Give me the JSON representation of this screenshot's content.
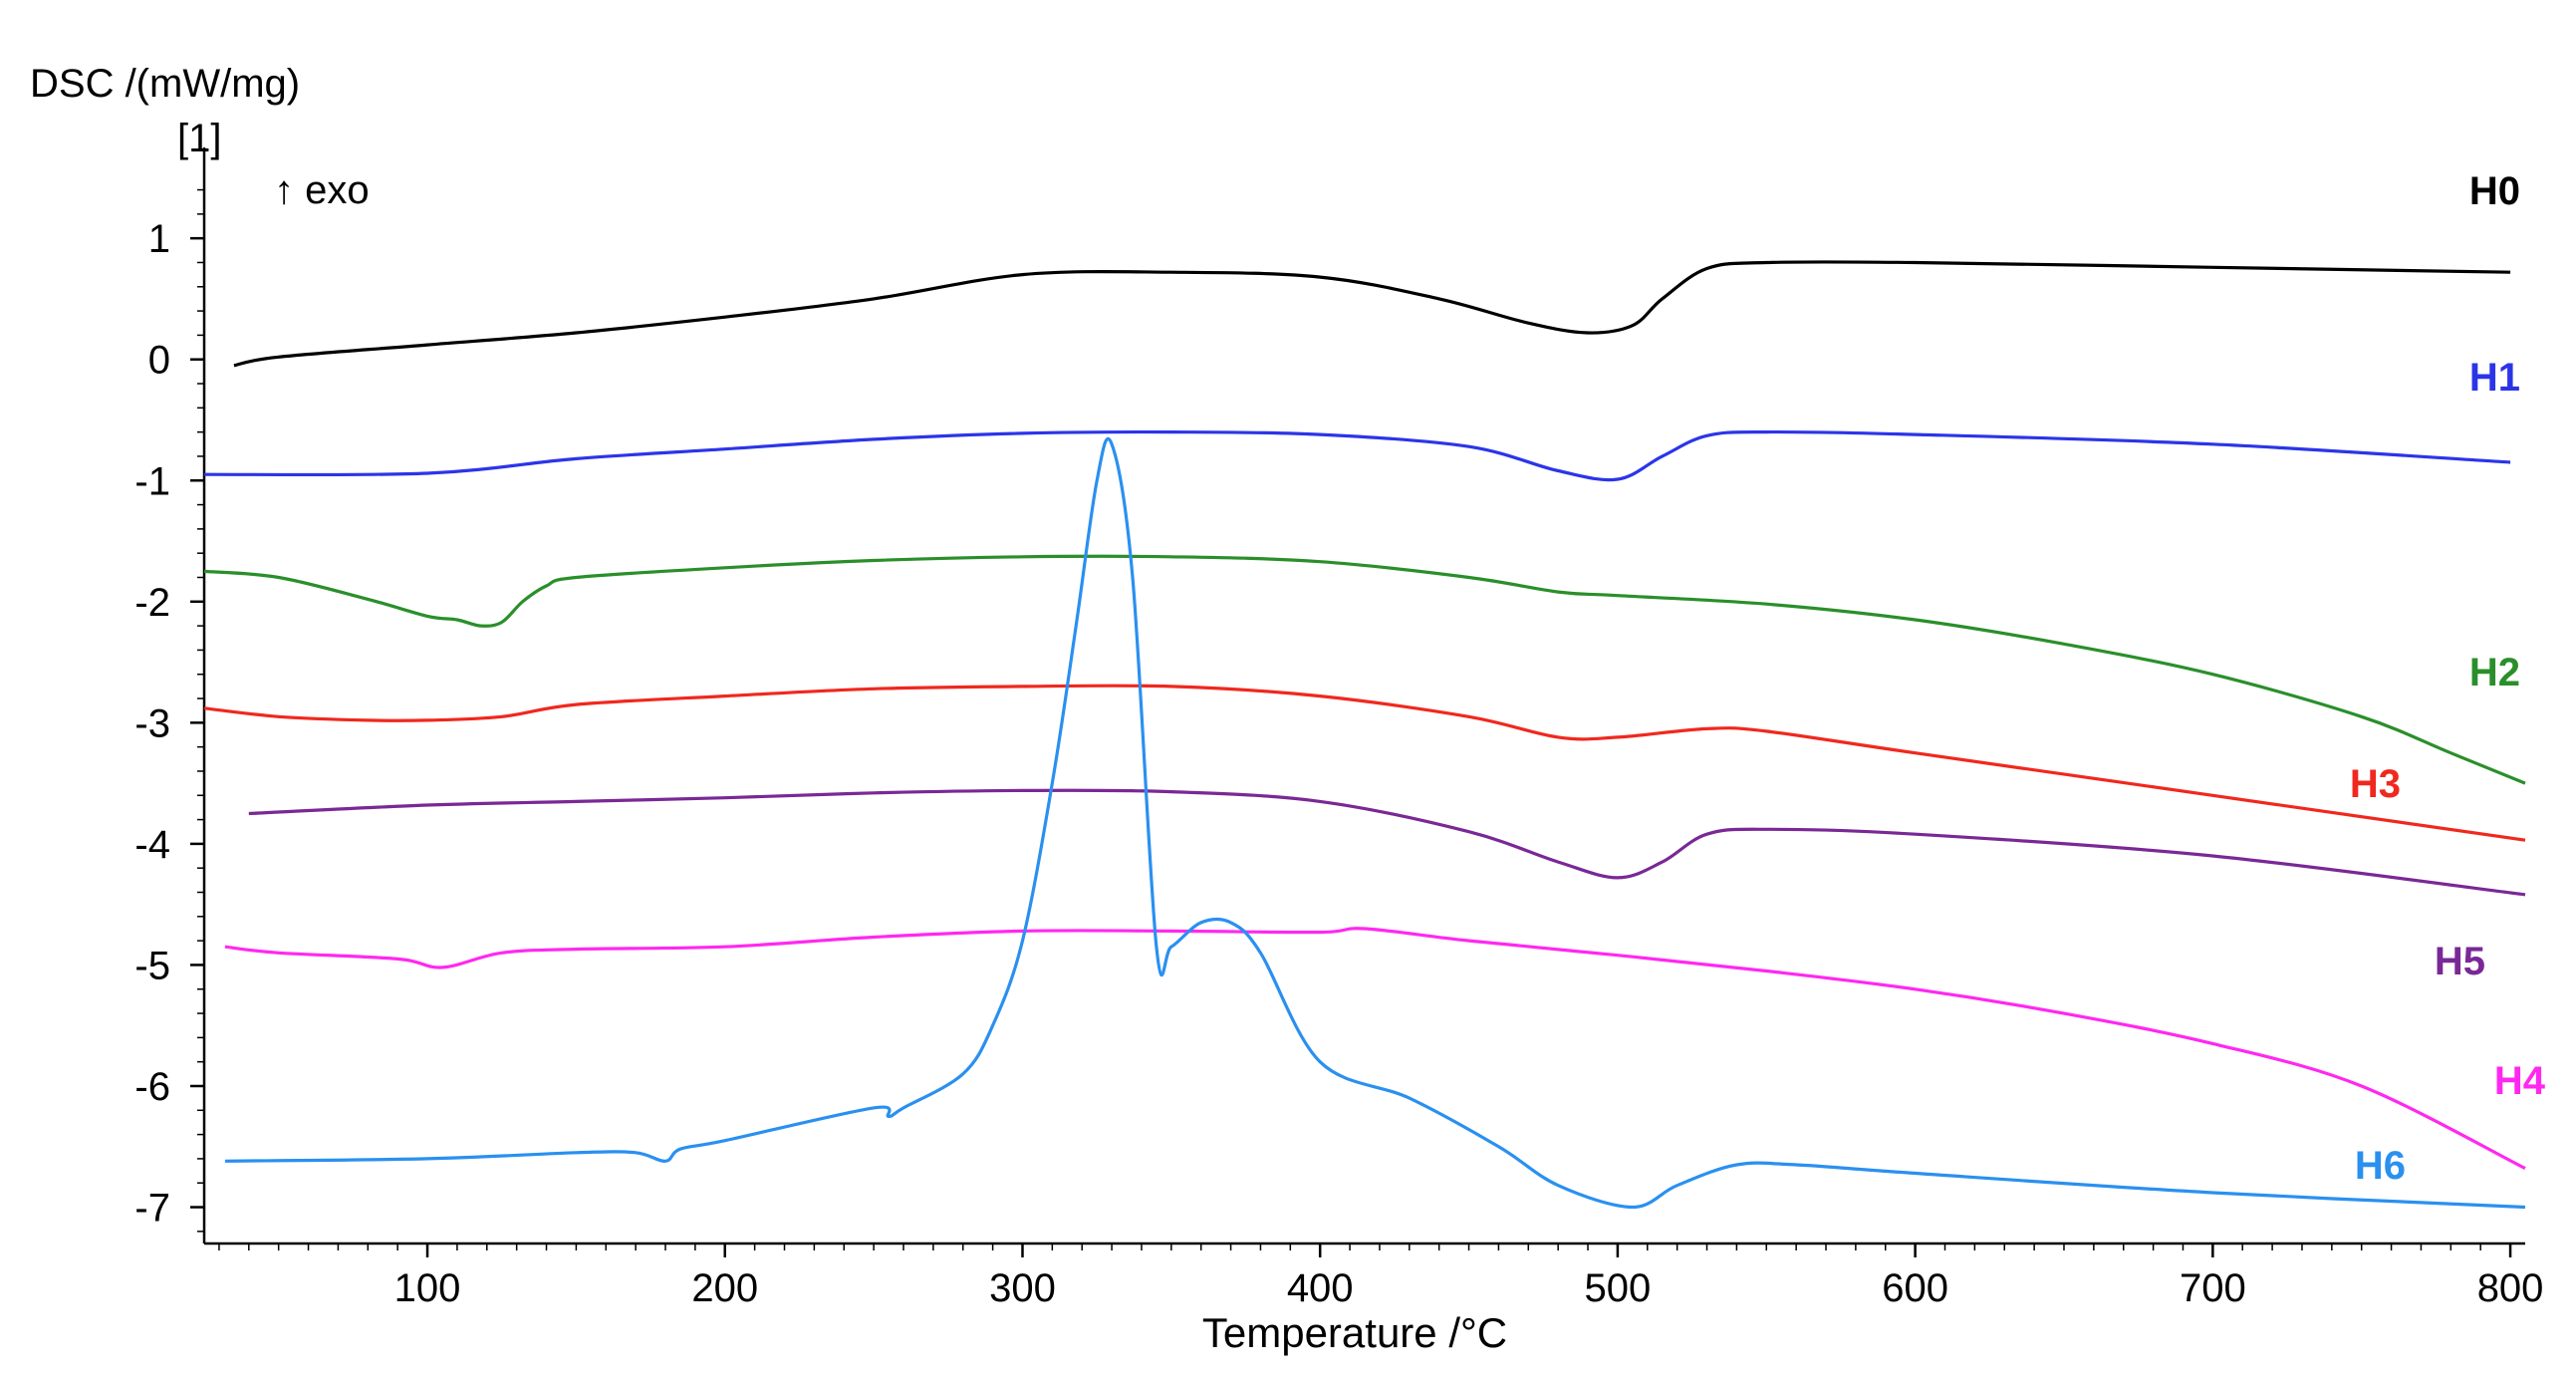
{
  "chart_data": {
    "type": "line",
    "ylabel": "DSC /(mW/mg)",
    "yunit": "[1]",
    "xlabel": "Temperature /°C",
    "annotation": "↑ exo",
    "xlim": [
      25,
      805
    ],
    "ylim": [
      -7.3,
      1.75
    ],
    "xticks": [
      100,
      200,
      300,
      400,
      500,
      600,
      700,
      800
    ],
    "yticks": [
      1,
      0,
      -1,
      -2,
      -3,
      -4,
      -5,
      -6,
      -7
    ],
    "grid": false,
    "legend": "right",
    "series": [
      {
        "name": "H0",
        "color": "#000000",
        "x": [
          35,
          50,
          100,
          150,
          200,
          250,
          300,
          350,
          400,
          440,
          470,
          490,
          505,
          515,
          530,
          550,
          600,
          700,
          800
        ],
        "y": [
          -0.05,
          0.02,
          0.12,
          0.22,
          0.35,
          0.5,
          0.7,
          0.72,
          0.68,
          0.5,
          0.3,
          0.22,
          0.28,
          0.5,
          0.75,
          0.8,
          0.8,
          0.76,
          0.72
        ]
      },
      {
        "name": "H1",
        "color": "#2b35e8",
        "x": [
          25,
          100,
          150,
          200,
          250,
          300,
          350,
          400,
          450,
          480,
          500,
          515,
          530,
          550,
          600,
          700,
          800
        ],
        "y": [
          -0.95,
          -0.94,
          -0.82,
          -0.74,
          -0.66,
          -0.61,
          -0.6,
          -0.62,
          -0.72,
          -0.92,
          -0.99,
          -0.8,
          -0.63,
          -0.6,
          -0.62,
          -0.7,
          -0.85
        ]
      },
      {
        "name": "H2",
        "color": "#2a8f2a",
        "x": [
          25,
          50,
          80,
          100,
          110,
          118,
          125,
          132,
          140,
          150,
          200,
          250,
          300,
          350,
          400,
          450,
          480,
          500,
          550,
          600,
          650,
          700,
          750,
          780,
          805
        ],
        "y": [
          -1.75,
          -1.8,
          -1.98,
          -2.12,
          -2.15,
          -2.2,
          -2.17,
          -2.0,
          -1.87,
          -1.8,
          -1.72,
          -1.66,
          -1.63,
          -1.63,
          -1.67,
          -1.8,
          -1.92,
          -1.95,
          -2.02,
          -2.15,
          -2.35,
          -2.6,
          -2.95,
          -3.25,
          -3.5
        ]
      },
      {
        "name": "H3",
        "color": "#f0281e",
        "x": [
          25,
          50,
          80,
          100,
          125,
          150,
          200,
          250,
          300,
          350,
          400,
          450,
          480,
          500,
          530,
          550,
          600,
          700,
          805
        ],
        "y": [
          -2.88,
          -2.95,
          -2.98,
          -2.98,
          -2.95,
          -2.85,
          -2.78,
          -2.72,
          -2.7,
          -2.7,
          -2.78,
          -2.95,
          -3.12,
          -3.12,
          -3.05,
          -3.07,
          -3.25,
          -3.6,
          -3.97
        ]
      },
      {
        "name": "H5",
        "color": "#7a2896",
        "x": [
          40,
          100,
          150,
          200,
          250,
          300,
          350,
          400,
          450,
          480,
          500,
          515,
          530,
          550,
          600,
          700,
          805
        ],
        "y": [
          -3.75,
          -3.68,
          -3.65,
          -3.62,
          -3.58,
          -3.56,
          -3.57,
          -3.65,
          -3.9,
          -4.15,
          -4.28,
          -4.15,
          -3.92,
          -3.88,
          -3.92,
          -4.1,
          -4.42
        ]
      },
      {
        "name": "H4",
        "color": "#ff28f0",
        "x": [
          32,
          50,
          90,
          105,
          125,
          150,
          200,
          250,
          300,
          350,
          400,
          415,
          450,
          500,
          550,
          600,
          650,
          700,
          750,
          805
        ],
        "y": [
          -4.85,
          -4.9,
          -4.95,
          -5.02,
          -4.9,
          -4.87,
          -4.85,
          -4.77,
          -4.72,
          -4.72,
          -4.73,
          -4.7,
          -4.8,
          -4.92,
          -5.05,
          -5.2,
          -5.4,
          -5.65,
          -6.0,
          -6.68
        ]
      },
      {
        "name": "H6",
        "color": "#2a90f0",
        "x": [
          32,
          100,
          150,
          170,
          180,
          185,
          200,
          250,
          255,
          260,
          280,
          290,
          300,
          310,
          318,
          325,
          330,
          337,
          345,
          350,
          360,
          370,
          380,
          400,
          430,
          460,
          480,
          505,
          520,
          540,
          560,
          600,
          700,
          805
        ],
        "y": [
          -6.62,
          -6.6,
          -6.55,
          -6.55,
          -6.62,
          -6.52,
          -6.45,
          -6.18,
          -6.25,
          -6.18,
          -5.9,
          -5.5,
          -4.8,
          -3.5,
          -2.2,
          -1.0,
          -0.7,
          -1.8,
          -4.85,
          -4.85,
          -4.65,
          -4.65,
          -4.9,
          -5.8,
          -6.1,
          -6.5,
          -6.82,
          -7.0,
          -6.82,
          -6.65,
          -6.65,
          -6.72,
          -6.88,
          -7.0
        ]
      }
    ]
  }
}
